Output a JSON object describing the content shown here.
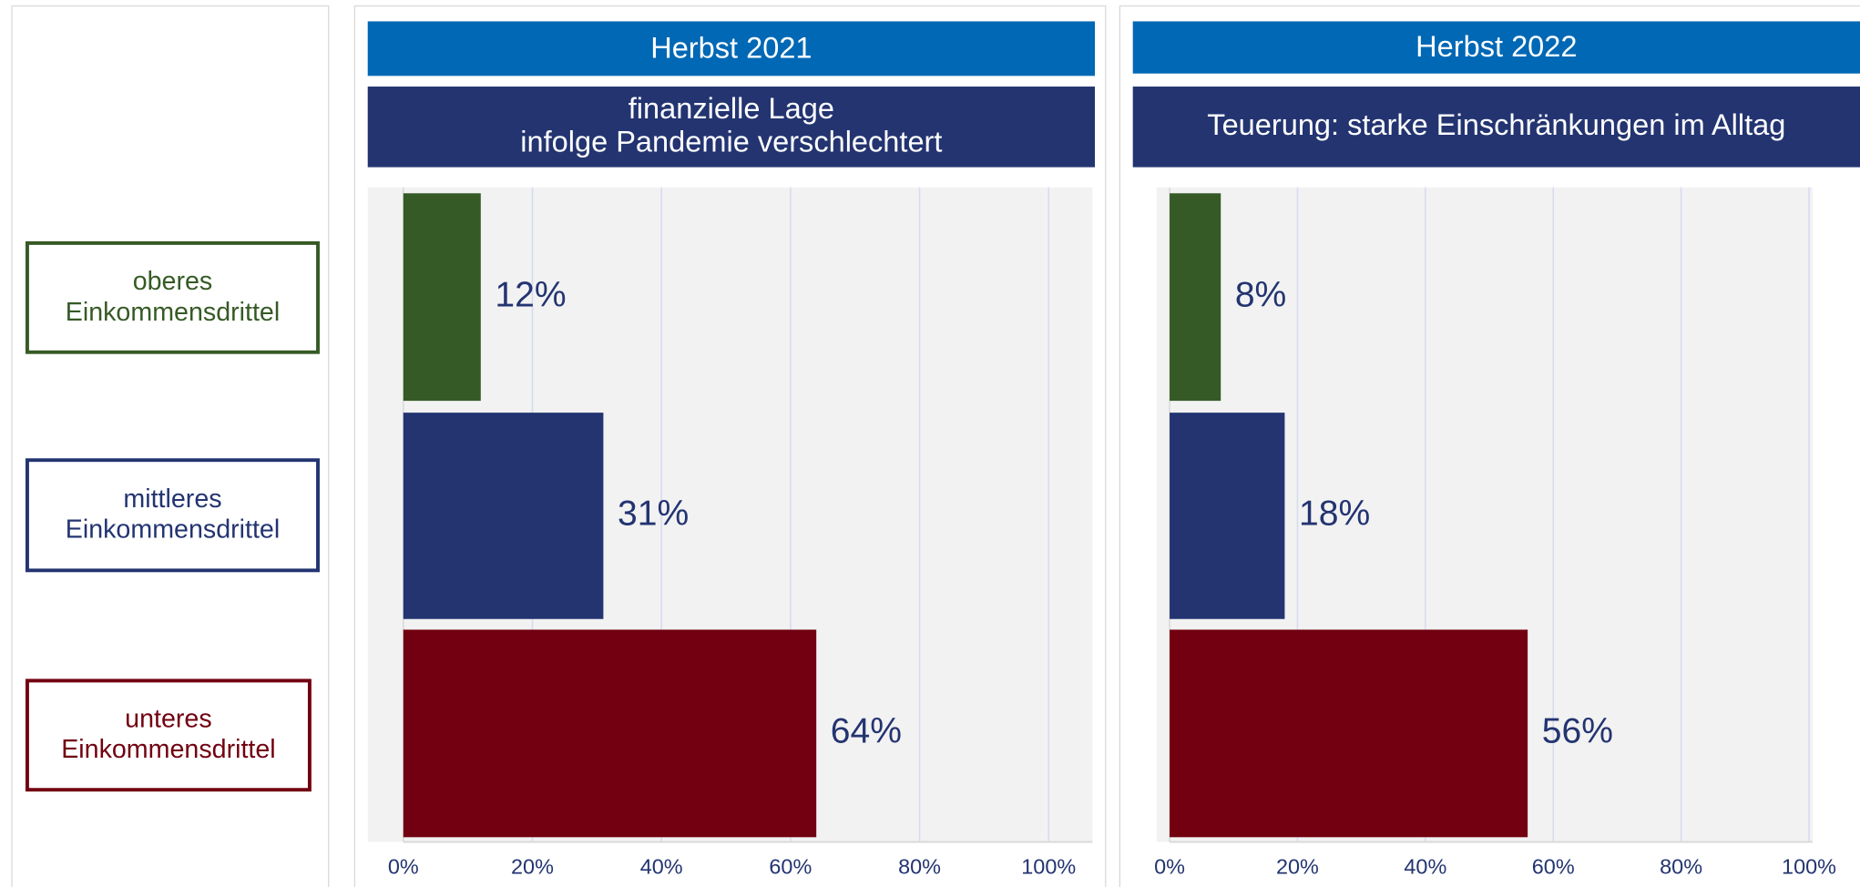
{
  "chart_data": [
    {
      "type": "bar",
      "orientation": "horizontal",
      "title": "Herbst 2021",
      "subtitle": "finanzielle Lage\ninfolge Pandemie verschlechtert",
      "categories": [
        "oberes\nEinkommensdrittel",
        "mittleres\nEinkommensdrittel",
        "unteres\nEinkommensdrittel"
      ],
      "values": [
        12,
        31,
        64
      ],
      "value_labels": [
        "12%",
        "31%",
        "64%"
      ],
      "colors": [
        "#365a25",
        "#233471",
        "#720010"
      ],
      "xlim": [
        0,
        100
      ],
      "xticks": [
        {
          "value": 0,
          "label": "0%"
        },
        {
          "value": 20,
          "label": "20%"
        },
        {
          "value": 40,
          "label": "40%"
        },
        {
          "value": 60,
          "label": "60%"
        },
        {
          "value": 80,
          "label": "80%"
        },
        {
          "value": 100,
          "label": "100%"
        }
      ],
      "grid": true
    },
    {
      "type": "bar",
      "orientation": "horizontal",
      "title": "Herbst 2022",
      "subtitle": "Teuerung: starke Einschränkungen im Alltag",
      "values": [
        8,
        18,
        56
      ],
      "value_labels": [
        "8%",
        "18%",
        "56%"
      ],
      "colors": [
        "#365a25",
        "#233471",
        "#720010"
      ],
      "xlim": [
        0,
        100
      ],
      "xticks": [
        {
          "value": 0,
          "label": "0%"
        },
        {
          "value": 20,
          "label": "20%"
        },
        {
          "value": 40,
          "label": "40%"
        },
        {
          "value": 60,
          "label": "60%"
        },
        {
          "value": 80,
          "label": "80%"
        },
        {
          "value": 100,
          "label": "100%"
        }
      ],
      "grid": true
    }
  ]
}
